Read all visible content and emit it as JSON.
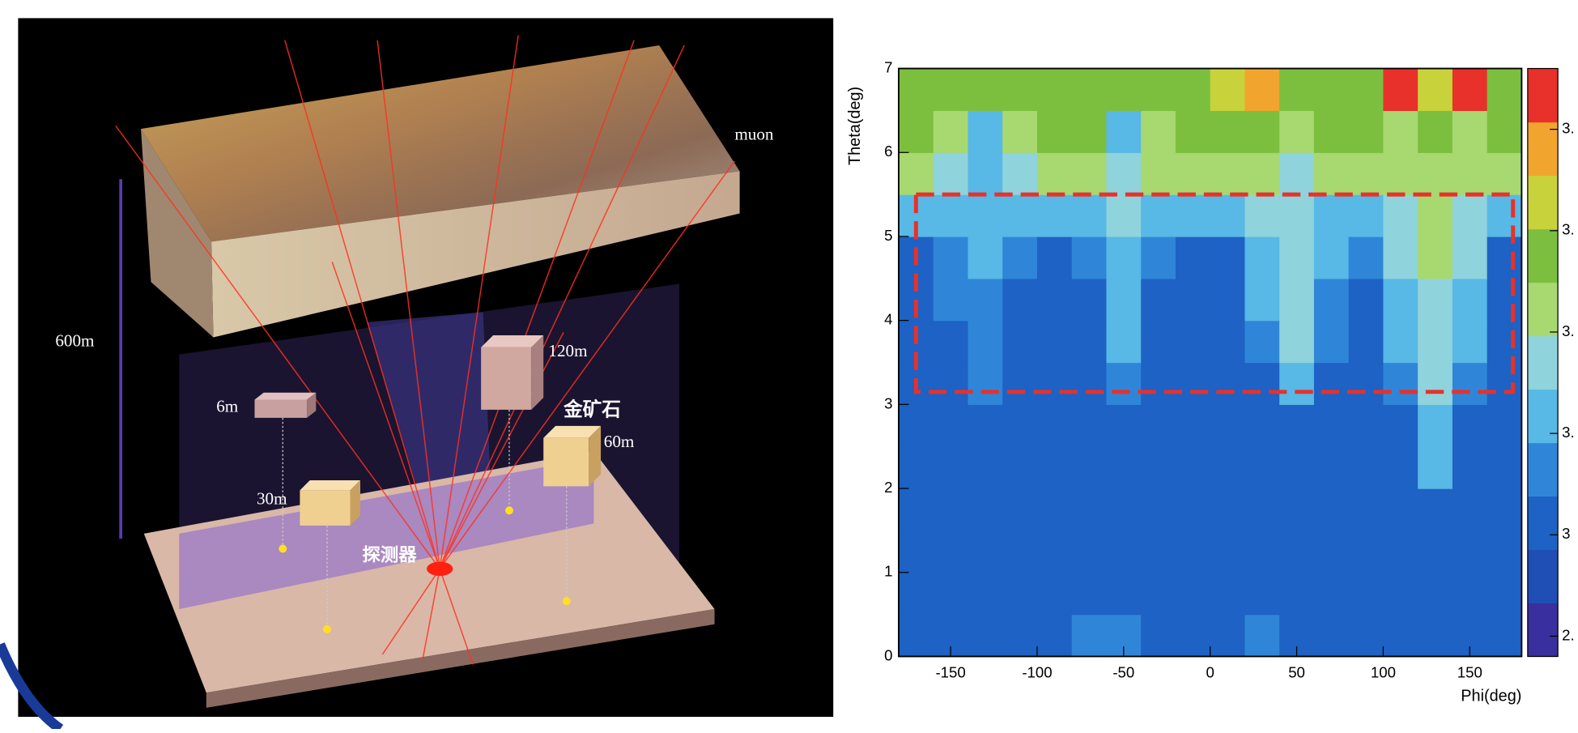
{
  "diagram": {
    "labels": [
      "muon",
      "600m",
      "6m",
      "120m",
      "金矿石",
      "60m",
      "30m",
      "探测器"
    ]
  },
  "chart_data": {
    "type": "heatmap",
    "x_label": "Phi(deg)",
    "y_label": "Theta(deg)",
    "xlim": [
      -180,
      180
    ],
    "ylim": [
      0,
      7
    ],
    "xticks": [
      -150,
      -100,
      -50,
      0,
      50,
      100,
      150
    ],
    "yticks": [
      0,
      1,
      2,
      3,
      4,
      5,
      6,
      7
    ],
    "x_bins": [
      -180,
      -160,
      -140,
      -120,
      -100,
      -80,
      -60,
      -40,
      -20,
      0,
      20,
      40,
      60,
      80,
      100,
      120,
      140,
      160,
      180
    ],
    "y_bins": [
      0,
      0.5,
      1,
      1.5,
      2,
      2.5,
      3,
      3.5,
      4,
      4.5,
      5,
      5.5,
      6,
      6.5,
      7
    ],
    "z": [
      [
        3.0,
        3.0,
        3.0,
        3.0,
        3.03,
        3.05,
        3.05,
        3.03,
        3.0,
        3.0,
        3.05,
        3.03,
        3.0,
        3.0,
        3.0,
        3.0,
        3.0,
        3.0
      ],
      [
        3.0,
        3.0,
        3.0,
        3.0,
        3.0,
        3.0,
        3.0,
        3.0,
        3.0,
        3.0,
        3.0,
        3.0,
        3.0,
        3.0,
        3.0,
        3.0,
        3.0,
        3.0
      ],
      [
        3.0,
        3.0,
        3.0,
        3.0,
        3.0,
        3.0,
        3.02,
        3.0,
        3.0,
        3.0,
        3.0,
        3.0,
        3.0,
        3.0,
        3.0,
        3.0,
        3.0,
        3.0
      ],
      [
        3.0,
        3.0,
        3.0,
        3.0,
        3.0,
        3.0,
        3.0,
        3.0,
        3.0,
        3.0,
        3.0,
        3.02,
        3.0,
        3.0,
        3.0,
        3.02,
        3.0,
        3.0
      ],
      [
        3.0,
        3.0,
        3.0,
        3.0,
        3.0,
        3.0,
        3.0,
        3.0,
        3.0,
        3.0,
        3.0,
        3.0,
        3.0,
        3.0,
        3.02,
        3.1,
        3.0,
        3.0
      ],
      [
        3.0,
        3.0,
        3.0,
        3.0,
        3.0,
        3.0,
        3.0,
        3.0,
        3.0,
        3.0,
        3.0,
        3.02,
        3.0,
        3.0,
        3.03,
        3.1,
        3.02,
        3.0
      ],
      [
        3.0,
        3.02,
        3.05,
        3.0,
        3.0,
        3.0,
        3.08,
        3.0,
        3.0,
        3.0,
        3.0,
        3.1,
        3.0,
        3.0,
        3.05,
        3.15,
        3.05,
        3.0
      ],
      [
        3.0,
        3.03,
        3.06,
        3.02,
        3.0,
        3.0,
        3.1,
        3.02,
        3.0,
        3.0,
        3.05,
        3.15,
        3.05,
        3.0,
        3.1,
        3.18,
        3.1,
        3.0
      ],
      [
        3.0,
        3.05,
        3.08,
        3.03,
        3.0,
        3.02,
        3.12,
        3.03,
        3.0,
        3.0,
        3.1,
        3.15,
        3.08,
        3.0,
        3.12,
        3.18,
        3.12,
        3.0
      ],
      [
        3.0,
        3.05,
        3.1,
        3.05,
        3.02,
        3.05,
        3.12,
        3.08,
        3.02,
        3.0,
        3.12,
        3.15,
        3.1,
        3.05,
        3.15,
        3.2,
        3.15,
        3.02
      ],
      [
        3.12,
        3.1,
        3.12,
        3.12,
        3.1,
        3.12,
        3.15,
        3.12,
        3.1,
        3.12,
        3.15,
        3.15,
        3.12,
        3.12,
        3.18,
        3.2,
        3.18,
        3.12
      ],
      [
        3.2,
        3.15,
        3.12,
        3.18,
        3.22,
        3.22,
        3.15,
        3.2,
        3.22,
        3.22,
        3.2,
        3.18,
        3.22,
        3.2,
        3.22,
        3.2,
        3.22,
        3.22
      ],
      [
        3.25,
        3.2,
        3.1,
        3.22,
        3.25,
        3.25,
        3.12,
        3.22,
        3.25,
        3.25,
        3.25,
        3.2,
        3.25,
        3.25,
        3.22,
        3.25,
        3.2,
        3.25
      ],
      [
        3.28,
        3.25,
        3.25,
        3.28,
        3.3,
        3.28,
        3.25,
        3.3,
        3.3,
        3.35,
        3.38,
        3.28,
        3.3,
        3.3,
        3.45,
        3.35,
        3.45,
        3.3
      ]
    ],
    "zlim": [
      2.88,
      3.46
    ],
    "zticks": [
      {
        "value": 3.4,
        "label": "3."
      },
      {
        "value": 3.3,
        "label": "3."
      },
      {
        "value": 3.2,
        "label": "3."
      },
      {
        "value": 3.1,
        "label": "3."
      },
      {
        "value": 3.0,
        "label": "3"
      },
      {
        "value": 2.9,
        "label": "2."
      }
    ],
    "colors": [
      "#3a2f9e",
      "#1f4eb4",
      "#1d62c4",
      "#2f86d8",
      "#58b8e6",
      "#8fd3dc",
      "#a8d870",
      "#7cbf3f",
      "#c8d23a",
      "#f2a52e",
      "#e8312a"
    ],
    "highlight_box": {
      "x": [
        -170,
        175
      ],
      "y": [
        3.15,
        5.5
      ],
      "color": "#e8312a"
    }
  }
}
